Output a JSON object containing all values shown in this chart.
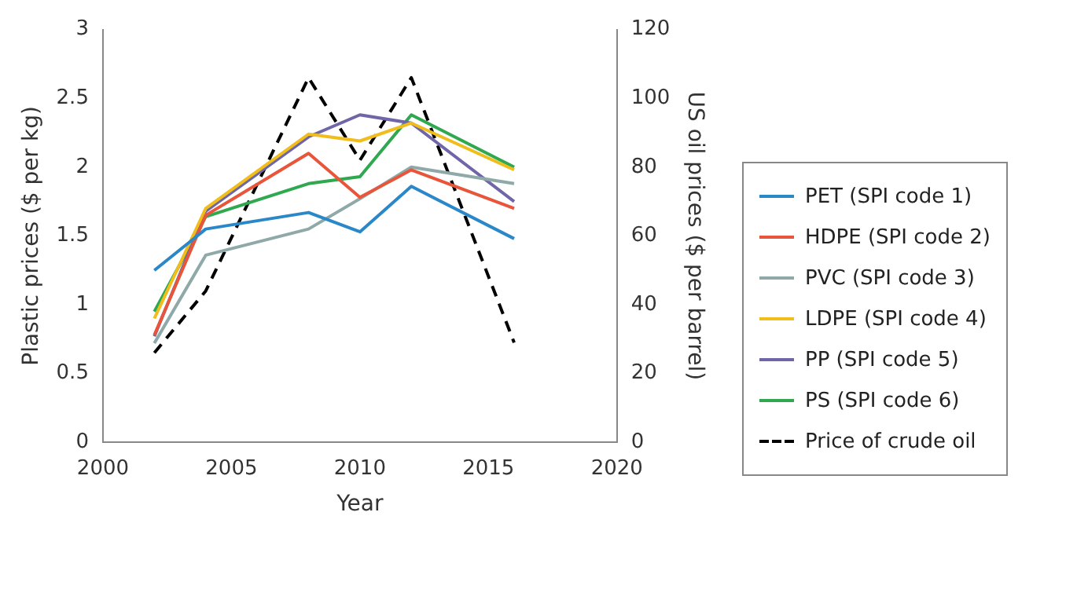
{
  "chart_data": {
    "type": "line",
    "xlabel": "Year",
    "ylabel": "Plastic prices ($ per kg)",
    "y2label": "US oil prices ($ per barrel)",
    "x": [
      2002,
      2004,
      2008,
      2010,
      2012,
      2016
    ],
    "xlim": [
      2000,
      2020
    ],
    "xticks": [
      2000,
      2005,
      2010,
      2015,
      2020
    ],
    "ylim": [
      0,
      3
    ],
    "yticks": [
      0,
      0.5,
      1,
      1.5,
      2,
      2.5,
      3
    ],
    "y2lim": [
      0,
      120
    ],
    "y2ticks": [
      0,
      20,
      40,
      60,
      80,
      100,
      120
    ],
    "grid": false,
    "legend": "right",
    "marker": "none",
    "line_style": "solid",
    "series": [
      {
        "name": "PET (SPI code 1)",
        "color": "#2a87c8",
        "values": [
          1.25,
          1.55,
          1.67,
          1.53,
          1.86,
          1.48
        ]
      },
      {
        "name": "HDPE (SPI code 2)",
        "color": "#e8553a",
        "values": [
          0.78,
          1.65,
          2.1,
          1.78,
          1.98,
          1.7
        ]
      },
      {
        "name": "PVC (SPI code 3)",
        "color": "#8ea9a8",
        "values": [
          0.72,
          1.36,
          1.55,
          1.77,
          2.0,
          1.88
        ]
      },
      {
        "name": "LDPE (SPI code 4)",
        "color": "#f0bd1c",
        "values": [
          0.9,
          1.7,
          2.24,
          2.19,
          2.32,
          1.98
        ]
      },
      {
        "name": "PP (SPI code 5)",
        "color": "#6f66a8",
        "values": [
          0.77,
          1.68,
          2.22,
          2.38,
          2.32,
          1.75
        ]
      },
      {
        "name": "PS (SPI code 6)",
        "color": "#2fa84f",
        "values": [
          0.95,
          1.64,
          1.88,
          1.93,
          2.38,
          2.0
        ]
      },
      {
        "name": "Price of crude oil",
        "color": "#000000",
        "axis": "y2",
        "line_style": "dashed",
        "values": [
          26,
          44,
          106,
          82,
          106,
          29
        ]
      }
    ]
  }
}
